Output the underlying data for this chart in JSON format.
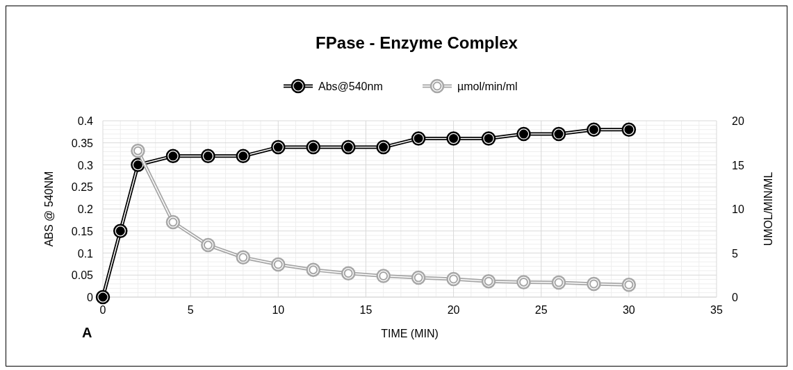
{
  "chart_data": {
    "type": "line",
    "title": "FPase - Enzyme Complex",
    "xlabel": "TIME (MIN)",
    "ylabel": "ABS @ 540NM",
    "y2label": "UMOL/MIN/ML",
    "x": [
      0,
      1,
      2,
      4,
      6,
      8,
      10,
      12,
      14,
      16,
      18,
      20,
      22,
      24,
      26,
      28,
      30
    ],
    "series": [
      {
        "name": "Abs@540nm",
        "color": "#000000",
        "values": [
          0,
          0.15,
          0.3,
          0.32,
          0.32,
          0.32,
          0.34,
          0.34,
          0.34,
          0.34,
          0.36,
          0.36,
          0.36,
          0.37,
          0.37,
          0.38,
          0.38
        ]
      },
      {
        "name": "µmol/min/ml",
        "color": "#a6a6a6",
        "axis": "y2",
        "x": [
          2,
          4,
          6,
          8,
          10,
          12,
          14,
          16,
          18,
          20,
          22,
          24,
          26,
          28,
          30
        ],
        "values": [
          16.6,
          8.5,
          5.9,
          4.5,
          3.7,
          3.1,
          2.7,
          2.4,
          2.2,
          2.05,
          1.8,
          1.7,
          1.65,
          1.5,
          1.4
        ]
      }
    ],
    "xlim": [
      0,
      35
    ],
    "xticks": [
      0,
      5,
      10,
      15,
      20,
      25,
      30,
      35
    ],
    "ylim": [
      0,
      0.4
    ],
    "yticks": [
      {
        "value": 0,
        "label": "0"
      },
      {
        "value": 0.05,
        "label": "0.05"
      },
      {
        "value": 0.1,
        "label": "0.1"
      },
      {
        "value": 0.15,
        "label": "0.15"
      },
      {
        "value": 0.2,
        "label": "0.2"
      },
      {
        "value": 0.25,
        "label": "0.25"
      },
      {
        "value": 0.3,
        "label": "0.3"
      },
      {
        "value": 0.35,
        "label": "0.35"
      },
      {
        "value": 0.4,
        "label": "0.4"
      }
    ],
    "y2lim": [
      0,
      20
    ],
    "y2ticks": [
      0,
      5,
      10,
      15,
      20
    ],
    "grid": true,
    "legend": "top",
    "marker": "circle",
    "line_style": "solid",
    "annotations": [
      "A"
    ]
  }
}
